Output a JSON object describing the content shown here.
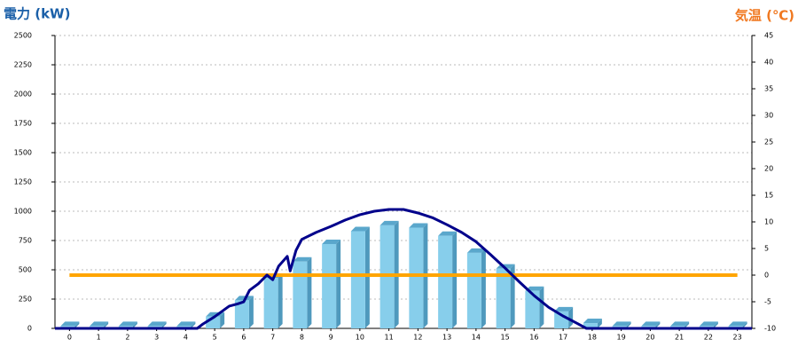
{
  "chart_data": {
    "type": "bar",
    "title": "電力 (kW)",
    "y2_title": "気温 (℃)",
    "categories": [
      "0",
      "1",
      "2",
      "3",
      "4",
      "5",
      "6",
      "7",
      "8",
      "9",
      "10",
      "11",
      "12",
      "13",
      "14",
      "15",
      "16",
      "17",
      "18",
      "19",
      "20",
      "21",
      "22",
      "23"
    ],
    "xlim": [
      -0.5,
      23.5
    ],
    "ylim": [
      0,
      2500
    ],
    "yticks": [
      0,
      250,
      500,
      750,
      1000,
      1250,
      1500,
      1750,
      2000,
      2250,
      2500
    ],
    "y2lim": [
      -10,
      45
    ],
    "y2ticks": [
      -10,
      -5,
      0,
      5,
      10,
      15,
      20,
      25,
      30,
      35,
      40,
      45
    ],
    "grid": true,
    "series": [
      {
        "type": "bar",
        "color": "#87ceeb",
        "values": [
          20,
          20,
          20,
          20,
          20,
          100,
          240,
          430,
          570,
          720,
          830,
          880,
          860,
          790,
          645,
          510,
          320,
          145,
          45,
          20,
          20,
          20,
          20,
          20
        ]
      },
      {
        "type": "line",
        "axis": "y2",
        "color": "#ffa500",
        "values": [
          0,
          0,
          0,
          0,
          0,
          0,
          0,
          0,
          0,
          0,
          0,
          0,
          0,
          0,
          0,
          0,
          0,
          0,
          0,
          0,
          0,
          0,
          0,
          0
        ]
      },
      {
        "type": "line",
        "color": "#00008b",
        "x": [
          -0.5,
          4.4,
          4.6,
          5,
          5.5,
          5.8,
          6,
          6.2,
          6.5,
          6.8,
          7,
          7.2,
          7.5,
          7.6,
          7.8,
          8,
          8.5,
          9,
          9.5,
          10,
          10.5,
          11,
          11.5,
          12,
          12.5,
          13,
          13.5,
          14,
          14.5,
          15,
          15.5,
          16,
          16.5,
          17,
          17.5,
          17.8,
          23.5
        ],
        "values": [
          0,
          0,
          38,
          100,
          190,
          210,
          227,
          325,
          380,
          455,
          415,
          530,
          615,
          490,
          665,
          760,
          820,
          870,
          925,
          970,
          1000,
          1015,
          1015,
          985,
          945,
          885,
          820,
          740,
          630,
          515,
          395,
          280,
          180,
          105,
          40,
          0,
          0
        ]
      }
    ]
  }
}
